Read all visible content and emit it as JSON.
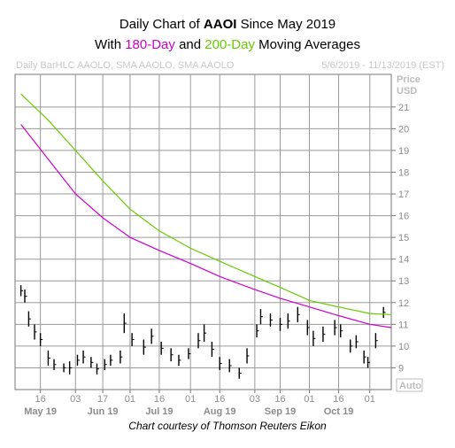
{
  "title": {
    "line1_prefix": "Daily Chart of ",
    "line1_ticker": "AAOI",
    "line1_suffix": " Since May 2019",
    "line2_prefix": "With ",
    "line2_ma1": "180-Day",
    "line2_mid": " and ",
    "line2_ma2": "200-Day",
    "line2_suffix": " Moving Averages"
  },
  "header": {
    "left": "Daily BarHLC AAOLO, SMA AAOLO, SMA AAOLO",
    "right": "5/6/2019 - 11/13/2019 (EST)"
  },
  "axis": {
    "price_label": "Price",
    "currency_label": "USD",
    "auto_label": "Auto"
  },
  "footer": "Chart courtesy of Thomson Reuters Eikon",
  "colors": {
    "price_bars": "#000000",
    "sma_180": "#cc00cc",
    "sma_200": "#66cc00",
    "grid": "#9a9a9a"
  },
  "chart_data": {
    "type": "line",
    "title": "Daily Chart of AAOI Since May 2019",
    "subtitle": "With 180-Day and 200-Day Moving Averages",
    "ylabel": "Price USD",
    "ylim": [
      8,
      22.5
    ],
    "y_ticks": [
      9,
      10,
      11,
      12,
      13,
      14,
      15,
      16,
      17,
      18,
      19,
      20,
      21
    ],
    "x_day_ticks": [
      {
        "label": "16",
        "date": "2019-05-16"
      },
      {
        "label": "03",
        "date": "2019-06-03"
      },
      {
        "label": "17",
        "date": "2019-06-17"
      },
      {
        "label": "01",
        "date": "2019-07-01"
      },
      {
        "label": "16",
        "date": "2019-07-16"
      },
      {
        "label": "01",
        "date": "2019-08-01"
      },
      {
        "label": "16",
        "date": "2019-08-16"
      },
      {
        "label": "03",
        "date": "2019-09-03"
      },
      {
        "label": "16",
        "date": "2019-09-16"
      },
      {
        "label": "01",
        "date": "2019-10-01"
      },
      {
        "label": "16",
        "date": "2019-10-16"
      },
      {
        "label": "01",
        "date": "2019-11-01"
      }
    ],
    "x_month_labels": [
      {
        "label": "May 19",
        "date": "2019-05-16"
      },
      {
        "label": "Jun 19",
        "date": "2019-06-17"
      },
      {
        "label": "Jul 19",
        "date": "2019-07-16"
      },
      {
        "label": "Aug 19",
        "date": "2019-08-16"
      },
      {
        "label": "Sep 19",
        "date": "2019-09-16"
      },
      {
        "label": "Oct 19",
        "date": "2019-10-16"
      }
    ],
    "x_range": [
      "2019-05-03",
      "2019-11-12"
    ],
    "grid": true,
    "series": [
      {
        "name": "180-Day",
        "color": "#cc00cc",
        "points": [
          [
            "2019-05-06",
            20.2
          ],
          [
            "2019-05-20",
            18.6
          ],
          [
            "2019-06-03",
            17.0
          ],
          [
            "2019-06-17",
            15.9
          ],
          [
            "2019-07-01",
            15.0
          ],
          [
            "2019-07-16",
            14.4
          ],
          [
            "2019-08-01",
            13.8
          ],
          [
            "2019-08-16",
            13.2
          ],
          [
            "2019-09-03",
            12.6
          ],
          [
            "2019-09-16",
            12.2
          ],
          [
            "2019-10-01",
            11.8
          ],
          [
            "2019-10-16",
            11.4
          ],
          [
            "2019-11-01",
            11.0
          ],
          [
            "2019-11-12",
            10.85
          ]
        ]
      },
      {
        "name": "200-Day",
        "color": "#66cc00",
        "points": [
          [
            "2019-05-06",
            21.6
          ],
          [
            "2019-05-20",
            20.4
          ],
          [
            "2019-06-03",
            19.0
          ],
          [
            "2019-06-17",
            17.6
          ],
          [
            "2019-07-01",
            16.3
          ],
          [
            "2019-07-16",
            15.3
          ],
          [
            "2019-08-01",
            14.5
          ],
          [
            "2019-08-16",
            13.9
          ],
          [
            "2019-09-03",
            13.2
          ],
          [
            "2019-09-16",
            12.7
          ],
          [
            "2019-10-01",
            12.1
          ],
          [
            "2019-10-16",
            11.8
          ],
          [
            "2019-11-01",
            11.5
          ],
          [
            "2019-11-12",
            11.45
          ]
        ]
      }
    ],
    "price_bars": [
      {
        "date": "2019-05-06",
        "high": 12.8,
        "low": 12.3
      },
      {
        "date": "2019-05-08",
        "high": 12.6,
        "low": 12.0
      },
      {
        "date": "2019-05-10",
        "high": 11.6,
        "low": 10.9
      },
      {
        "date": "2019-05-13",
        "high": 11.0,
        "low": 10.3
      },
      {
        "date": "2019-05-16",
        "high": 10.6,
        "low": 10.0
      },
      {
        "date": "2019-05-20",
        "high": 9.8,
        "low": 9.1
      },
      {
        "date": "2019-05-23",
        "high": 9.4,
        "low": 8.9
      },
      {
        "date": "2019-05-28",
        "high": 9.2,
        "low": 8.8
      },
      {
        "date": "2019-05-31",
        "high": 9.3,
        "low": 8.7
      },
      {
        "date": "2019-06-04",
        "high": 9.6,
        "low": 9.1
      },
      {
        "date": "2019-06-07",
        "high": 9.8,
        "low": 9.2
      },
      {
        "date": "2019-06-11",
        "high": 9.5,
        "low": 9.0
      },
      {
        "date": "2019-06-14",
        "high": 9.2,
        "low": 8.7
      },
      {
        "date": "2019-06-18",
        "high": 9.4,
        "low": 8.9
      },
      {
        "date": "2019-06-21",
        "high": 9.6,
        "low": 9.1
      },
      {
        "date": "2019-06-26",
        "high": 9.8,
        "low": 9.2
      },
      {
        "date": "2019-06-28",
        "high": 11.5,
        "low": 10.6
      },
      {
        "date": "2019-07-02",
        "high": 10.6,
        "low": 10.0
      },
      {
        "date": "2019-07-08",
        "high": 10.3,
        "low": 9.6
      },
      {
        "date": "2019-07-12",
        "high": 10.8,
        "low": 10.1
      },
      {
        "date": "2019-07-17",
        "high": 10.2,
        "low": 9.6
      },
      {
        "date": "2019-07-22",
        "high": 9.9,
        "low": 9.3
      },
      {
        "date": "2019-07-26",
        "high": 9.6,
        "low": 9.1
      },
      {
        "date": "2019-07-31",
        "high": 9.9,
        "low": 9.4
      },
      {
        "date": "2019-08-05",
        "high": 10.6,
        "low": 9.9
      },
      {
        "date": "2019-08-08",
        "high": 11.0,
        "low": 10.2
      },
      {
        "date": "2019-08-12",
        "high": 10.2,
        "low": 9.5
      },
      {
        "date": "2019-08-16",
        "high": 9.5,
        "low": 8.9
      },
      {
        "date": "2019-08-21",
        "high": 9.4,
        "low": 8.8
      },
      {
        "date": "2019-08-26",
        "high": 9.0,
        "low": 8.5
      },
      {
        "date": "2019-08-30",
        "high": 9.9,
        "low": 9.2
      },
      {
        "date": "2019-09-04",
        "high": 11.0,
        "low": 10.4
      },
      {
        "date": "2019-09-06",
        "high": 11.7,
        "low": 11.0
      },
      {
        "date": "2019-09-11",
        "high": 11.5,
        "low": 10.9
      },
      {
        "date": "2019-09-16",
        "high": 11.3,
        "low": 10.7
      },
      {
        "date": "2019-09-20",
        "high": 11.5,
        "low": 10.8
      },
      {
        "date": "2019-09-25",
        "high": 11.8,
        "low": 11.1
      },
      {
        "date": "2019-09-30",
        "high": 11.2,
        "low": 10.5
      },
      {
        "date": "2019-10-03",
        "high": 10.7,
        "low": 10.0
      },
      {
        "date": "2019-10-08",
        "high": 10.9,
        "low": 10.2
      },
      {
        "date": "2019-10-14",
        "high": 11.2,
        "low": 10.5
      },
      {
        "date": "2019-10-17",
        "high": 11.0,
        "low": 10.4
      },
      {
        "date": "2019-10-22",
        "high": 10.3,
        "low": 9.7
      },
      {
        "date": "2019-10-25",
        "high": 10.5,
        "low": 9.9
      },
      {
        "date": "2019-10-29",
        "high": 9.8,
        "low": 9.2
      },
      {
        "date": "2019-10-31",
        "high": 9.5,
        "low": 9.0
      },
      {
        "date": "2019-11-04",
        "high": 10.6,
        "low": 9.9
      },
      {
        "date": "2019-11-08",
        "high": 11.8,
        "low": 11.3
      }
    ]
  }
}
